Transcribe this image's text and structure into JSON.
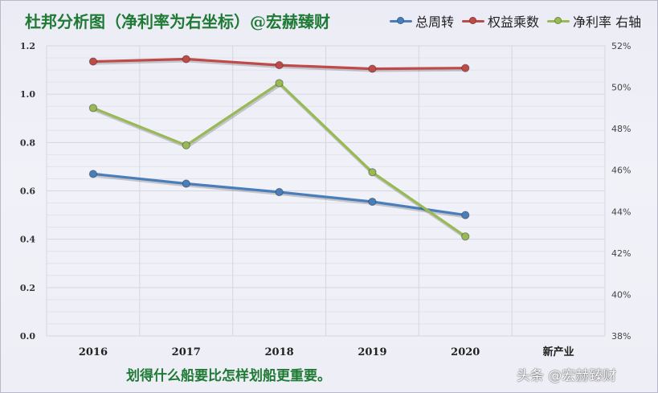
{
  "colors": {
    "title": "#1e7a34",
    "caption": "#1e7a34",
    "grid": "#d6d6e2",
    "background": "#eeeef6"
  },
  "chart_data": {
    "type": "line",
    "title": "杜邦分析图（净利率为右坐标）@宏赫臻财",
    "categories": [
      "2016",
      "2017",
      "2018",
      "2019",
      "2020",
      "新产业"
    ],
    "left_axis": {
      "ylim": [
        0,
        1.2
      ],
      "ticks": [
        "0.0",
        "0.2",
        "0.4",
        "0.6",
        "0.8",
        "1.0",
        "1.2"
      ]
    },
    "right_axis": {
      "ylim": [
        38,
        52
      ],
      "ticks": [
        "38%",
        "40%",
        "42%",
        "44%",
        "46%",
        "48%",
        "50%",
        "52%"
      ]
    },
    "grid": true,
    "legend_position": "top-right",
    "series": [
      {
        "name": "总周转",
        "axis": "left",
        "color": "#4a7ebb",
        "values": [
          0.67,
          0.63,
          0.595,
          0.555,
          0.5,
          null
        ]
      },
      {
        "name": "权益乘数",
        "axis": "left",
        "color": "#be4b48",
        "values": [
          1.135,
          1.145,
          1.12,
          1.105,
          1.108,
          null
        ]
      },
      {
        "name": "净利率 右轴",
        "axis": "right",
        "color": "#98b954",
        "values": [
          49.0,
          47.2,
          50.2,
          45.9,
          42.8,
          null
        ]
      }
    ]
  },
  "caption": "划得什么船要比怎样划船更重要。",
  "watermark": "头条 @宏赫臻财"
}
